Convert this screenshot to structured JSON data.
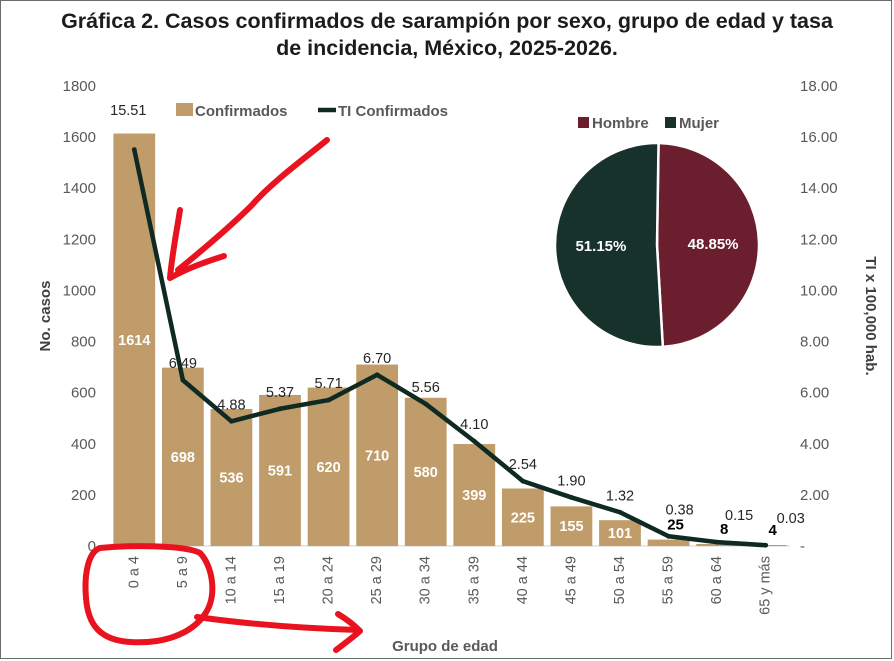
{
  "title_line1": "Gráfica 2. Casos confirmados de sarampión por sexo, grupo de edad y tasa",
  "title_line2": "de incidencia, México, 2025-2026.",
  "colors": {
    "bar": "#C09C6A",
    "line": "#0F2A22",
    "hombre": "#6B1F2E",
    "mujer": "#16322B",
    "axis_text": "#595959",
    "annotation": "#E8131F"
  },
  "chart_data": [
    {
      "type": "bar",
      "title": "Gráfica 2. Casos confirmados de sarampión por sexo, grupo de edad y tasa de incidencia, México, 2025-2026.",
      "xlabel": "Grupo de edad",
      "ylabel": "No. casos",
      "y2label": "TI x 100,000 hab.",
      "categories": [
        "0 a 4",
        "5 a 9",
        "10 a 14",
        "15 a 19",
        "20 a 24",
        "25 a 29",
        "30 a 34",
        "35 a 39",
        "40 a 44",
        "45 a 49",
        "50 a 54",
        "55 a 59",
        "60 a 64",
        "65 y más"
      ],
      "series": [
        {
          "name": "Confirmados",
          "type": "bar",
          "axis": "left",
          "values": [
            1614,
            698,
            536,
            591,
            620,
            710,
            580,
            399,
            225,
            155,
            101,
            25,
            8,
            4
          ],
          "labels": [
            "1614",
            "698",
            "536",
            "591",
            "620",
            "710",
            "580",
            "399",
            "225",
            "155",
            "101",
            "25",
            "8",
            "4"
          ]
        },
        {
          "name": "TI Confirmados",
          "type": "line",
          "axis": "right",
          "values": [
            15.51,
            6.49,
            4.88,
            5.37,
            5.71,
            6.7,
            5.56,
            4.1,
            2.54,
            1.9,
            1.32,
            0.38,
            0.15,
            0.03
          ],
          "labels": [
            "15.51",
            "6.49",
            "4.88",
            "5.37",
            "5.71",
            "6.70",
            "5.56",
            "4.10",
            "2.54",
            "1.90",
            "1.32",
            "0.38",
            "0.15",
            "0.03"
          ]
        }
      ],
      "ylim": [
        0,
        1800
      ],
      "yticks": [
        "0",
        "200",
        "400",
        "600",
        "800",
        "1000",
        "1200",
        "1400",
        "1600",
        "1800"
      ],
      "y2lim": [
        0,
        18
      ],
      "y2ticks": [
        "-",
        "2.00",
        "4.00",
        "6.00",
        "8.00",
        "10.00",
        "12.00",
        "14.00",
        "16.00",
        "18.00"
      ],
      "legend": {
        "position": "top-left",
        "entries": [
          "Confirmados",
          "TI Confirmados"
        ]
      }
    },
    {
      "type": "pie",
      "legend": {
        "position": "top",
        "entries": [
          "Hombre",
          "Mujer"
        ]
      },
      "slices": [
        {
          "name": "Hombre",
          "value": 48.85,
          "label": "48.85%"
        },
        {
          "name": "Mujer",
          "value": 51.15,
          "label": "51.15%"
        }
      ]
    }
  ]
}
